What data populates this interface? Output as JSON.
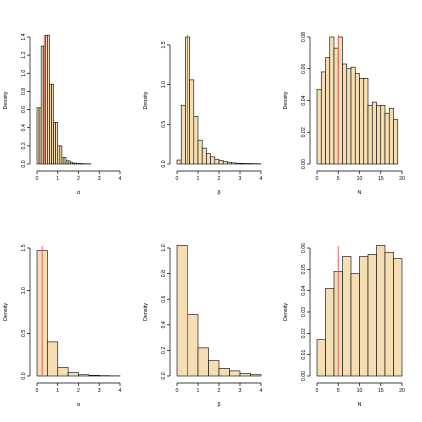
{
  "chart_data": [
    {
      "type": "bar",
      "histogram": true,
      "xlabel": "α",
      "ylabel": "Density",
      "xlim": [
        0,
        4
      ],
      "ylim": [
        0,
        1.4
      ],
      "xticks": [
        0,
        1,
        2,
        3,
        4
      ],
      "yticks": [
        0.0,
        0.2,
        0.4,
        0.6,
        0.8,
        1.0,
        1.2,
        1.4
      ],
      "ytick_labels": [
        "0.0",
        "0.2",
        "0.4",
        "0.6",
        "0.8",
        "1.0",
        "1.2",
        "1.4"
      ],
      "bins": [
        [
          0.0,
          0.1
        ],
        [
          0.1,
          0.2
        ],
        [
          0.2,
          0.3
        ],
        [
          0.3,
          0.4
        ],
        [
          0.4,
          0.5
        ],
        [
          0.5,
          0.6
        ],
        [
          0.6,
          0.7
        ],
        [
          0.7,
          0.8
        ],
        [
          0.8,
          0.9
        ],
        [
          0.9,
          1.0
        ],
        [
          1.0,
          1.1
        ],
        [
          1.1,
          1.2
        ],
        [
          1.2,
          1.3
        ],
        [
          1.3,
          1.4
        ],
        [
          1.4,
          1.5
        ],
        [
          1.5,
          1.6
        ],
        [
          1.6,
          1.7
        ],
        [
          1.7,
          1.8
        ],
        [
          1.8,
          1.9
        ],
        [
          1.9,
          2.0
        ],
        [
          2.0,
          2.1
        ],
        [
          2.1,
          2.2
        ],
        [
          2.2,
          2.3
        ],
        [
          2.3,
          2.4
        ],
        [
          2.4,
          2.5
        ],
        [
          2.5,
          2.6
        ]
      ],
      "values": [
        0.62,
        0.62,
        1.3,
        1.3,
        1.42,
        1.42,
        0.88,
        0.88,
        0.46,
        0.46,
        0.2,
        0.2,
        0.07,
        0.07,
        0.035,
        0.035,
        0.02,
        0.01,
        0.01,
        0.005,
        0.005,
        0.005,
        0.003,
        0.003,
        0.002,
        0.002
      ],
      "ref_line": 0.35
    },
    {
      "type": "bar",
      "histogram": true,
      "xlabel": "β",
      "ylabel": "Density",
      "xlim": [
        0,
        4
      ],
      "ylim": [
        0,
        1.6
      ],
      "xticks": [
        0,
        1,
        2,
        3,
        4
      ],
      "yticks": [
        0.0,
        0.5,
        1.0,
        1.5
      ],
      "ytick_labels": [
        "0.0",
        "0.5",
        "1.0",
        "1.5"
      ],
      "bins": [
        [
          0.0,
          0.2
        ],
        [
          0.2,
          0.4
        ],
        [
          0.4,
          0.6
        ],
        [
          0.6,
          0.8
        ],
        [
          0.8,
          1.0
        ],
        [
          1.0,
          1.2
        ],
        [
          1.2,
          1.4
        ],
        [
          1.4,
          1.6
        ],
        [
          1.6,
          1.8
        ],
        [
          1.8,
          2.0
        ],
        [
          2.0,
          2.2
        ],
        [
          2.2,
          2.4
        ],
        [
          2.4,
          2.6
        ],
        [
          2.6,
          2.8
        ],
        [
          2.8,
          3.0
        ],
        [
          3.0,
          3.2
        ],
        [
          3.2,
          3.4
        ],
        [
          3.4,
          3.6
        ],
        [
          3.6,
          3.8
        ],
        [
          3.8,
          4.0
        ]
      ],
      "values": [
        0.05,
        0.74,
        1.6,
        1.06,
        0.6,
        0.3,
        0.2,
        0.13,
        0.09,
        0.06,
        0.045,
        0.03,
        0.02,
        0.015,
        0.01,
        0.008,
        0.006,
        0.005,
        0.004,
        0.003
      ],
      "ref_line": 0.5
    },
    {
      "type": "bar",
      "histogram": true,
      "xlabel": "N",
      "ylabel": "Density",
      "xlim": [
        0,
        20
      ],
      "ylim": [
        0,
        0.08
      ],
      "xticks": [
        0,
        5,
        10,
        15,
        20
      ],
      "yticks": [
        0.0,
        0.02,
        0.04,
        0.06,
        0.08
      ],
      "ytick_labels": [
        "0.00",
        "0.02",
        "0.04",
        "0.06",
        "0.08"
      ],
      "bins": [
        [
          0,
          1
        ],
        [
          1,
          2
        ],
        [
          2,
          3
        ],
        [
          3,
          4
        ],
        [
          4,
          5
        ],
        [
          5,
          6
        ],
        [
          6,
          7
        ],
        [
          7,
          8
        ],
        [
          8,
          9
        ],
        [
          9,
          10
        ],
        [
          10,
          11
        ],
        [
          11,
          12
        ],
        [
          12,
          13
        ],
        [
          13,
          14
        ],
        [
          14,
          15
        ],
        [
          15,
          16
        ],
        [
          16,
          17
        ],
        [
          17,
          18
        ],
        [
          18,
          19
        ],
        [
          19,
          20
        ]
      ],
      "values": [
        0.047,
        0.058,
        0.067,
        0.08,
        0.073,
        0.08,
        0.063,
        0.06,
        0.061,
        0.057,
        0.054,
        0.054,
        0.037,
        0.039,
        0.037,
        0.037,
        0.032,
        0.035,
        0.028,
        0.0
      ],
      "ref_line": 5
    },
    {
      "type": "bar",
      "histogram": true,
      "xlabel": "α",
      "ylabel": "Density",
      "xlim": [
        0,
        4
      ],
      "ylim": [
        0,
        1.5
      ],
      "xticks": [
        0,
        1,
        2,
        3,
        4
      ],
      "yticks": [
        0.0,
        0.5,
        1.0,
        1.5
      ],
      "ytick_labels": [
        "0.0",
        "0.5",
        "1.0",
        "1.5"
      ],
      "bins": [
        [
          0.0,
          0.5
        ],
        [
          0.5,
          1.0
        ],
        [
          1.0,
          1.5
        ],
        [
          1.5,
          2.0
        ],
        [
          2.0,
          2.5
        ],
        [
          2.5,
          3.0
        ],
        [
          3.0,
          3.5
        ],
        [
          3.5,
          4.0
        ]
      ],
      "values": [
        1.47,
        0.4,
        0.1,
        0.04,
        0.015,
        0.008,
        0.004,
        0.002
      ],
      "ref_line": 0.25
    },
    {
      "type": "bar",
      "histogram": true,
      "xlabel": "β",
      "ylabel": "Density",
      "xlim": [
        0,
        4
      ],
      "ylim": [
        0,
        1.0
      ],
      "xticks": [
        0,
        1,
        2,
        3,
        4
      ],
      "yticks": [
        0.0,
        0.2,
        0.4,
        0.6,
        0.8,
        1.0
      ],
      "ytick_labels": [
        "0.0",
        "0.2",
        "0.4",
        "0.6",
        "0.8",
        "1.0"
      ],
      "bins": [
        [
          0.0,
          0.5
        ],
        [
          0.5,
          1.0
        ],
        [
          1.0,
          1.5
        ],
        [
          1.5,
          2.0
        ],
        [
          2.0,
          2.5
        ],
        [
          2.5,
          3.0
        ],
        [
          3.0,
          3.5
        ],
        [
          3.5,
          4.0
        ]
      ],
      "values": [
        1.04,
        0.48,
        0.22,
        0.12,
        0.06,
        0.04,
        0.02,
        0.01
      ],
      "ref_line": 0.5
    },
    {
      "type": "bar",
      "histogram": true,
      "xlabel": "N",
      "ylabel": "Density",
      "xlim": [
        0,
        20
      ],
      "ylim": [
        0,
        0.06
      ],
      "xticks": [
        0,
        5,
        10,
        15,
        20
      ],
      "yticks": [
        0.0,
        0.01,
        0.02,
        0.03,
        0.04,
        0.05,
        0.06
      ],
      "ytick_labels": [
        "0.00",
        "0.01",
        "0.02",
        "0.03",
        "0.04",
        "0.05",
        "0.06"
      ],
      "bins": [
        [
          0,
          2
        ],
        [
          2,
          4
        ],
        [
          4,
          6
        ],
        [
          6,
          8
        ],
        [
          8,
          10
        ],
        [
          10,
          12
        ],
        [
          12,
          14
        ],
        [
          14,
          16
        ],
        [
          16,
          18
        ],
        [
          18,
          20
        ]
      ],
      "values": [
        0.017,
        0.041,
        0.049,
        0.056,
        0.048,
        0.056,
        0.057,
        0.062,
        0.058,
        0.055
      ],
      "ref_line": 5
    }
  ],
  "colors": {
    "bar_fill": "#f5deb3",
    "bar_stroke": "#000000",
    "ref_line": "#e05555",
    "axis": "#000000"
  }
}
